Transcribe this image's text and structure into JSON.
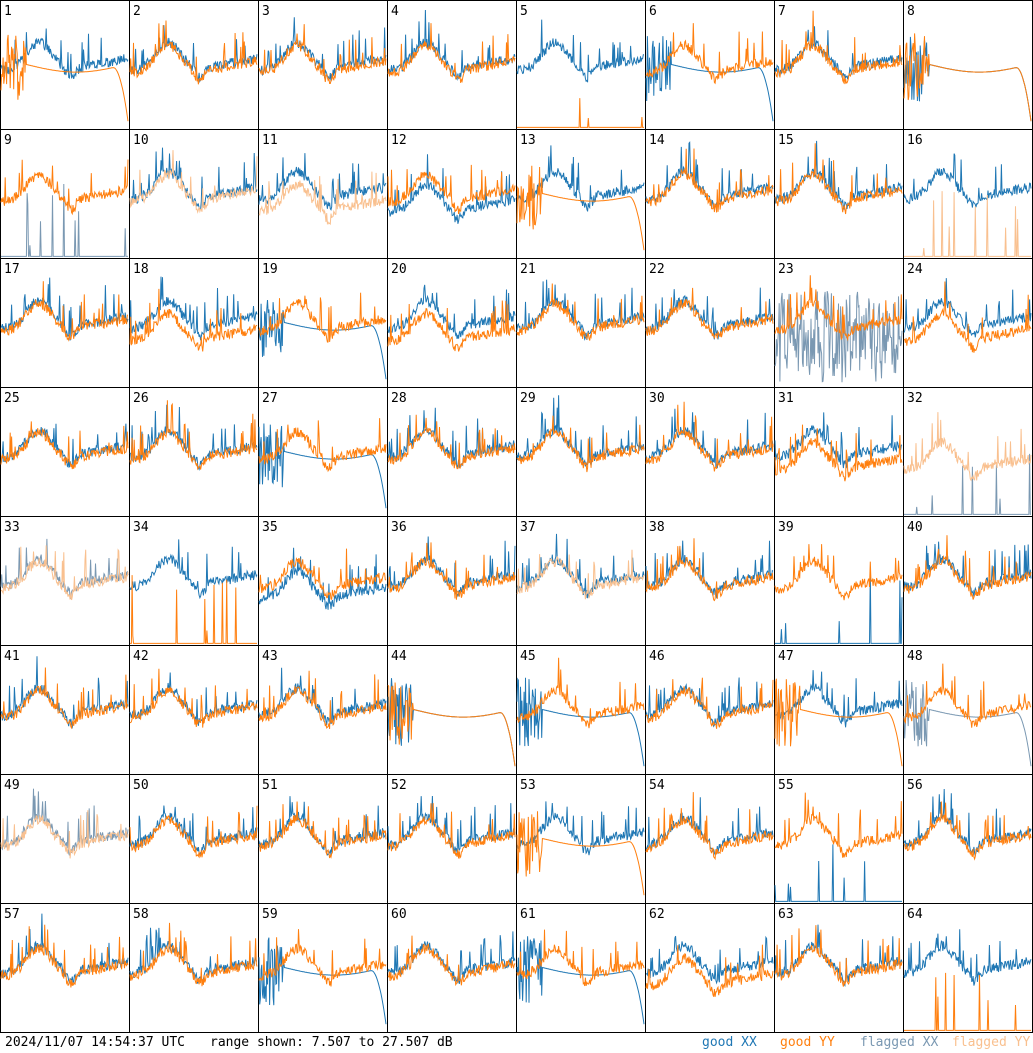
{
  "footer": {
    "timestamp": "2024/11/07 14:54:37 UTC",
    "range": "range shown: 7.507 to 27.507 dB",
    "legend": {
      "good_xx": "good XX",
      "good_yy": "good YY",
      "flagged_xx": "flagged XX",
      "flagged_yy": "flagged YY"
    }
  },
  "colors": {
    "good_xx": "#1f77b4",
    "good_yy": "#ff7f0e",
    "flagged_xx": "#7a98b2",
    "flagged_yy": "#f9c08f"
  },
  "chart_data": {
    "type": "line",
    "layout": "8x8 small multiples (per-tile spectra)",
    "ylim_db": [
      7.507,
      27.507
    ],
    "series_names": [
      "good XX",
      "good YY",
      "flagged XX",
      "flagged YY"
    ],
    "tiles": [
      {
        "label": "1",
        "xx": "normal",
        "yy": "dead"
      },
      {
        "label": "2",
        "xx": "normal",
        "yy": "normal"
      },
      {
        "label": "3",
        "xx": "normal",
        "yy": "normal"
      },
      {
        "label": "4",
        "xx": "normal",
        "yy": "normal"
      },
      {
        "label": "5",
        "xx": "normal",
        "yy": "spikes"
      },
      {
        "label": "6",
        "xx": "dead",
        "yy": "normal"
      },
      {
        "label": "7",
        "xx": "normal",
        "yy": "normal"
      },
      {
        "label": "8",
        "xx": "dead",
        "yy": "dead"
      },
      {
        "label": "9",
        "xx": "flagged-spikes",
        "yy": "normal"
      },
      {
        "label": "10",
        "xx": "normal",
        "yy": "flagged"
      },
      {
        "label": "11",
        "xx": "normal",
        "yy": "flagged-low"
      },
      {
        "label": "12",
        "xx": "low",
        "yy": "normal"
      },
      {
        "label": "13",
        "xx": "normal",
        "yy": "dead"
      },
      {
        "label": "14",
        "xx": "normal",
        "yy": "normal"
      },
      {
        "label": "15",
        "xx": "normal",
        "yy": "normal"
      },
      {
        "label": "16",
        "xx": "normal",
        "yy": "flagged-spikes"
      },
      {
        "label": "17",
        "xx": "normal",
        "yy": "normal"
      },
      {
        "label": "18",
        "xx": "normal",
        "yy": "low"
      },
      {
        "label": "19",
        "xx": "dead",
        "yy": "normal"
      },
      {
        "label": "20",
        "xx": "normal",
        "yy": "low"
      },
      {
        "label": "21",
        "xx": "normal",
        "yy": "normal"
      },
      {
        "label": "22",
        "xx": "normal",
        "yy": "normal"
      },
      {
        "label": "23",
        "xx": "flagged-noisy",
        "yy": "normal"
      },
      {
        "label": "24",
        "xx": "normal",
        "yy": "low"
      },
      {
        "label": "25",
        "xx": "normal",
        "yy": "normal"
      },
      {
        "label": "26",
        "xx": "normal",
        "yy": "normal"
      },
      {
        "label": "27",
        "xx": "dead",
        "yy": "normal"
      },
      {
        "label": "28",
        "xx": "normal",
        "yy": "normal"
      },
      {
        "label": "29",
        "xx": "normal",
        "yy": "normal"
      },
      {
        "label": "30",
        "xx": "normal",
        "yy": "normal"
      },
      {
        "label": "31",
        "xx": "normal",
        "yy": "low"
      },
      {
        "label": "32",
        "xx": "flagged-spikes",
        "yy": "flagged-low"
      },
      {
        "label": "33",
        "xx": "flagged",
        "yy": "flagged"
      },
      {
        "label": "34",
        "xx": "normal",
        "yy": "spikes"
      },
      {
        "label": "35",
        "xx": "low",
        "yy": "normal"
      },
      {
        "label": "36",
        "xx": "normal",
        "yy": "normal"
      },
      {
        "label": "37",
        "xx": "normal",
        "yy": "flagged"
      },
      {
        "label": "38",
        "xx": "normal",
        "yy": "normal"
      },
      {
        "label": "39",
        "xx": "spikes",
        "yy": "normal"
      },
      {
        "label": "40",
        "xx": "normal",
        "yy": "normal"
      },
      {
        "label": "41",
        "xx": "normal",
        "yy": "normal"
      },
      {
        "label": "42",
        "xx": "normal",
        "yy": "normal"
      },
      {
        "label": "43",
        "xx": "normal",
        "yy": "normal"
      },
      {
        "label": "44",
        "xx": "dead",
        "yy": "dead"
      },
      {
        "label": "45",
        "xx": "dead",
        "yy": "normal"
      },
      {
        "label": "46",
        "xx": "normal",
        "yy": "normal"
      },
      {
        "label": "47",
        "xx": "normal",
        "yy": "dead"
      },
      {
        "label": "48",
        "xx": "flagged-dead",
        "yy": "normal"
      },
      {
        "label": "49",
        "xx": "flagged",
        "yy": "flagged"
      },
      {
        "label": "50",
        "xx": "normal",
        "yy": "normal"
      },
      {
        "label": "51",
        "xx": "normal",
        "yy": "normal"
      },
      {
        "label": "52",
        "xx": "normal",
        "yy": "normal"
      },
      {
        "label": "53",
        "xx": "normal",
        "yy": "dead"
      },
      {
        "label": "54",
        "xx": "normal",
        "yy": "normal"
      },
      {
        "label": "55",
        "xx": "spikes",
        "yy": "normal"
      },
      {
        "label": "56",
        "xx": "normal",
        "yy": "normal"
      },
      {
        "label": "57",
        "xx": "normal",
        "yy": "normal"
      },
      {
        "label": "58",
        "xx": "normal",
        "yy": "normal"
      },
      {
        "label": "59",
        "xx": "dead",
        "yy": "normal"
      },
      {
        "label": "60",
        "xx": "normal",
        "yy": "normal"
      },
      {
        "label": "61",
        "xx": "dead",
        "yy": "normal"
      },
      {
        "label": "62",
        "xx": "normal",
        "yy": "low"
      },
      {
        "label": "63",
        "xx": "normal",
        "yy": "normal"
      },
      {
        "label": "64",
        "xx": "normal",
        "yy": "spikes"
      }
    ]
  }
}
